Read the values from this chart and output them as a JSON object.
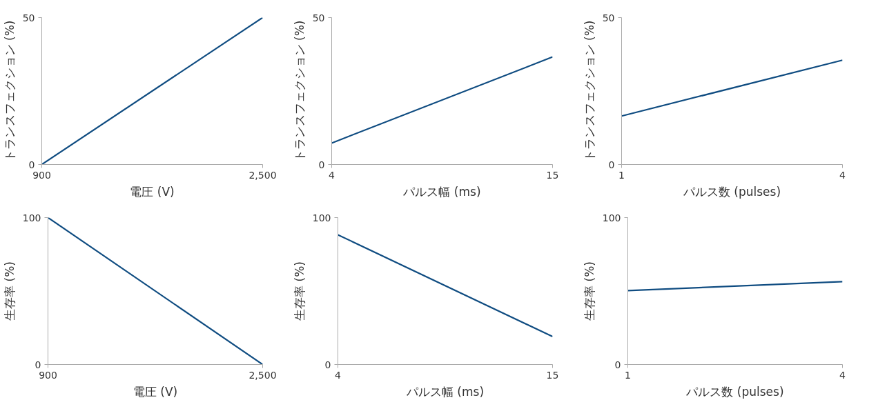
{
  "chart_data": [
    {
      "type": "line",
      "xlabel": "電圧 (V)",
      "ylabel": "トランスフェクション (%)",
      "x": [
        900,
        2500
      ],
      "values": [
        0,
        50
      ],
      "color": "#0f4c81",
      "xlim": [
        900,
        2500
      ],
      "ylim": [
        0,
        50
      ],
      "xticks": [
        900,
        {
          "value": 2500,
          "label": "2,500"
        }
      ],
      "yticks": [
        0,
        50
      ]
    },
    {
      "type": "line",
      "xlabel": "パルス幅 (ms)",
      "ylabel": "トランスフェクション (%)",
      "x": [
        4,
        15
      ],
      "values": [
        7.3,
        36.6
      ],
      "color": "#0f4c81",
      "xlim": [
        4,
        15
      ],
      "ylim": [
        0,
        50
      ],
      "xticks": [
        4,
        15
      ],
      "yticks": [
        0,
        50
      ]
    },
    {
      "type": "line",
      "xlabel": "パルス数 (pulses)",
      "ylabel": "トランスフェクション (%)",
      "x": [
        1,
        4
      ],
      "values": [
        16.5,
        35.5
      ],
      "color": "#0f4c81",
      "xlim": [
        1,
        4
      ],
      "ylim": [
        0,
        50
      ],
      "xticks": [
        1,
        4
      ],
      "yticks": [
        0,
        50
      ]
    },
    {
      "type": "line",
      "xlabel": "電圧 (V)",
      "ylabel": "生存率 (%)",
      "x": [
        900,
        2500
      ],
      "values": [
        100,
        0
      ],
      "color": "#0f4c81",
      "xlim": [
        900,
        2500
      ],
      "ylim": [
        0,
        100
      ],
      "xticks": [
        900,
        {
          "value": 2500,
          "label": "2,500"
        }
      ],
      "yticks": [
        0,
        100
      ]
    },
    {
      "type": "line",
      "xlabel": "パルス幅 (ms)",
      "ylabel": "生存率 (%)",
      "x": [
        4,
        15
      ],
      "values": [
        88.3,
        19
      ],
      "color": "#0f4c81",
      "xlim": [
        4,
        15
      ],
      "ylim": [
        0,
        100
      ],
      "xticks": [
        4,
        15
      ],
      "yticks": [
        0,
        100
      ]
    },
    {
      "type": "line",
      "xlabel": "パルス数 (pulses)",
      "ylabel": "生存率 (%)",
      "x": [
        1,
        4
      ],
      "values": [
        50.3,
        56.4
      ],
      "color": "#0f4c81",
      "xlim": [
        1,
        4
      ],
      "ylim": [
        0,
        100
      ],
      "xticks": [
        1,
        4
      ],
      "yticks": [
        0,
        100
      ]
    }
  ]
}
